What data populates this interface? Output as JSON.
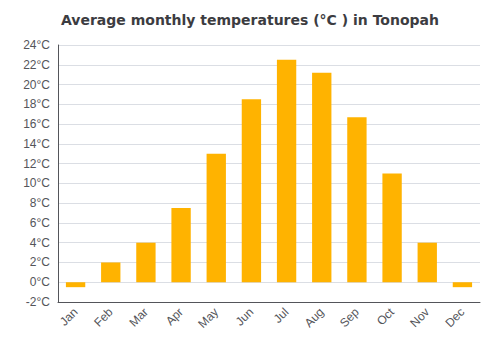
{
  "chart_data": {
    "type": "bar",
    "title": "Average monthly temperatures (°C ) in Tonopah",
    "categories": [
      "Jan",
      "Feb",
      "Mar",
      "Apr",
      "May",
      "Jun",
      "Jul",
      "Aug",
      "Sep",
      "Oct",
      "Nov",
      "Dec"
    ],
    "values": [
      -0.5,
      2.0,
      4.0,
      7.5,
      13.0,
      18.5,
      22.5,
      21.2,
      16.7,
      11.0,
      4.0,
      -0.5
    ],
    "color": "#FFB300",
    "ylim": [
      -2,
      24
    ],
    "yticks": [
      {
        "value": -2,
        "label": "-2°C"
      },
      {
        "value": 0,
        "label": "0°C"
      },
      {
        "value": 2,
        "label": "2°C"
      },
      {
        "value": 4,
        "label": "4°C"
      },
      {
        "value": 6,
        "label": "6°C"
      },
      {
        "value": 8,
        "label": "8°C"
      },
      {
        "value": 10,
        "label": "10°C"
      },
      {
        "value": 12,
        "label": "12°C"
      },
      {
        "value": 14,
        "label": "14°C"
      },
      {
        "value": 16,
        "label": "16°C"
      },
      {
        "value": 18,
        "label": "18°C"
      },
      {
        "value": 20,
        "label": "20°C"
      },
      {
        "value": 22,
        "label": "22°C"
      },
      {
        "value": 24,
        "label": "24°C"
      }
    ],
    "grid": true
  }
}
